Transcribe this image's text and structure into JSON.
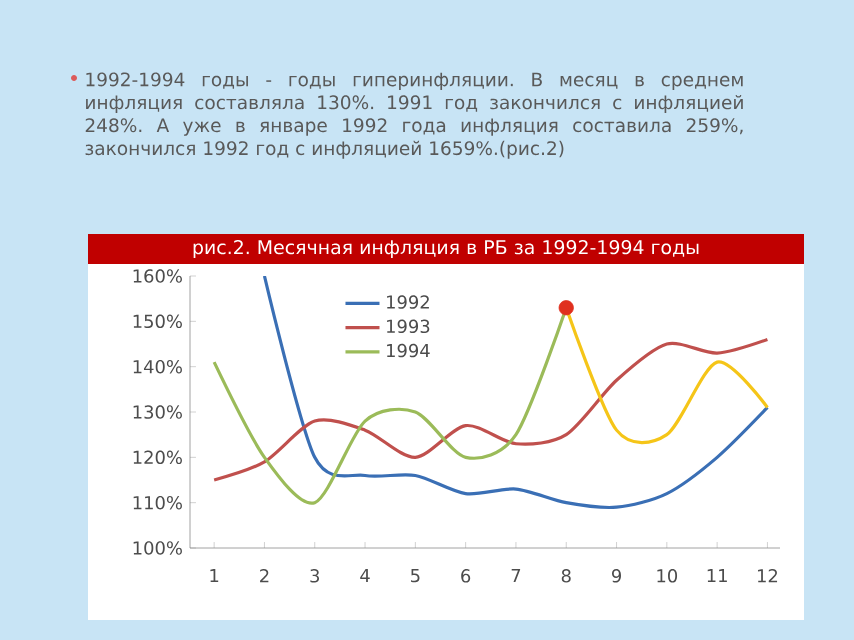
{
  "chart_data": {
    "type": "line",
    "title": "рис.2. Месячная инфляция в РБ за 1992-1994 годы",
    "subtitle": "1992-1994 годы - годы гиперинфляции. В месяц в среднем инфляция составляла 130%. 1991 год закончился с инфляцией 248%. А уже в январе 1992 года инфляция составила 259%, закончился 1992 год с инфляцией 1659%.(рис.2)",
    "categories": [
      "1",
      "2",
      "3",
      "4",
      "5",
      "6",
      "7",
      "8",
      "9",
      "10",
      "11",
      "12"
    ],
    "series": [
      {
        "name": "1992",
        "color": "#3a6fb5",
        "values": [
          null,
          160,
          120,
          116,
          116,
          112,
          113,
          110,
          109,
          112,
          120,
          131
        ]
      },
      {
        "name": "1993",
        "color": "#c0504d",
        "values": [
          115,
          119,
          128,
          126,
          120,
          127,
          123,
          125,
          137,
          145,
          143,
          146
        ]
      },
      {
        "name": "1994",
        "color": "#9bbb59",
        "values": [
          141,
          120,
          110,
          128,
          130,
          120,
          125,
          153,
          null,
          null,
          null,
          null
        ]
      },
      {
        "type": "line",
        "color": "#f5c518",
        "values": [
          null,
          null,
          null,
          null,
          null,
          null,
          null,
          153,
          126,
          125,
          141,
          131
        ]
      },
      {
        "type": "scatter",
        "color": "#e0301e",
        "values": [
          null,
          null,
          null,
          null,
          null,
          null,
          null,
          153,
          null,
          null,
          null,
          null
        ]
      }
    ],
    "ylim": [
      100,
      160
    ],
    "yticks": [
      {
        "value": 100,
        "label": "100%"
      },
      {
        "value": 110,
        "label": "110%"
      },
      {
        "value": 120,
        "label": "120%"
      },
      {
        "value": 130,
        "label": "130%"
      },
      {
        "value": 140,
        "label": "140%"
      },
      {
        "value": 150,
        "label": "150%"
      },
      {
        "value": 160,
        "label": "160%"
      }
    ],
    "legend": "top left"
  }
}
